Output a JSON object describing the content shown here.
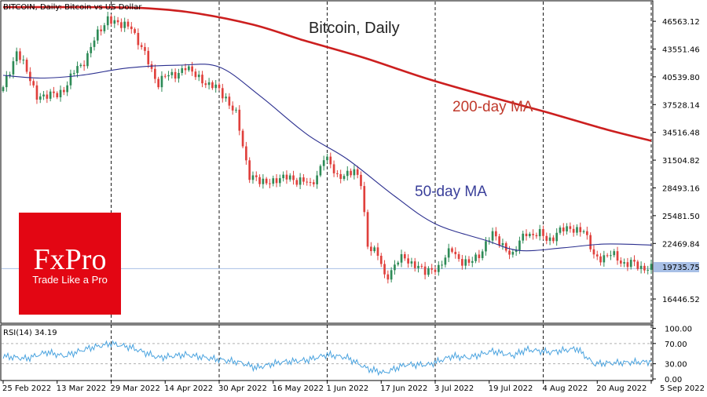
{
  "chart_data": {
    "type": "candlestick",
    "header": "BITCOIN, Daily:  Bitcoin vs US Dollar",
    "title": "Bitcoin, Daily",
    "annotations": {
      "ma200": "200-day MA",
      "ma50": "50-day MA"
    },
    "y_axis_ticks": [
      "46563.12",
      "43551.46",
      "40539.80",
      "37528.14",
      "34516.48",
      "31504.82",
      "28493.16",
      "25481.50",
      "22469.84",
      "16446.52"
    ],
    "y_range": [
      13900,
      48700
    ],
    "current_price": "19735.75",
    "x_axis_ticks": [
      "25 Feb 2022",
      "13 Mar 2022",
      "29 Mar 2022",
      "14 Apr 2022",
      "30 Apr 2022",
      "16 May 2022",
      "1 Jun 2022",
      "17 Jun 2022",
      "3 Jul 2022",
      "19 Jul 2022",
      "4 Aug 2022",
      "20 Aug 2022",
      "5 Sep 2022"
    ],
    "date_range": [
      "2022-02-25",
      "2022-09-05"
    ],
    "ma200_series": [
      [
        "2022-02-25",
        48100
      ],
      [
        "2022-03-20",
        48100
      ],
      [
        "2022-04-07",
        48000
      ],
      [
        "2022-04-22",
        47500
      ],
      [
        "2022-05-10",
        46200
      ],
      [
        "2022-05-25",
        44500
      ],
      [
        "2022-06-12",
        42600
      ],
      [
        "2022-06-30",
        40400
      ],
      [
        "2022-07-18",
        38500
      ],
      [
        "2022-08-05",
        36700
      ],
      [
        "2022-08-23",
        34800
      ],
      [
        "2022-09-05",
        33600
      ]
    ],
    "ma50_series": [
      [
        "2022-02-25",
        40700
      ],
      [
        "2022-03-08",
        40400
      ],
      [
        "2022-03-20",
        40700
      ],
      [
        "2022-04-03",
        41500
      ],
      [
        "2022-04-18",
        41800
      ],
      [
        "2022-04-30",
        41600
      ],
      [
        "2022-05-12",
        38500
      ],
      [
        "2022-05-26",
        34300
      ],
      [
        "2022-06-07",
        31600
      ],
      [
        "2022-06-21",
        27600
      ],
      [
        "2022-07-03",
        24600
      ],
      [
        "2022-07-18",
        22800
      ],
      [
        "2022-07-28",
        21700
      ],
      [
        "2022-08-10",
        22000
      ],
      [
        "2022-08-22",
        22400
      ],
      [
        "2022-09-05",
        22300
      ]
    ],
    "price_path": [
      [
        "2022-02-25",
        39000
      ],
      [
        "2022-03-01",
        43500
      ],
      [
        "2022-03-07",
        38500
      ],
      [
        "2022-03-13",
        38500
      ],
      [
        "2022-03-20",
        41800
      ],
      [
        "2022-03-28",
        47000
      ],
      [
        "2022-04-01",
        46000
      ],
      [
        "2022-04-04",
        46100
      ],
      [
        "2022-04-08",
        42700
      ],
      [
        "2022-04-12",
        40000
      ],
      [
        "2022-04-20",
        41500
      ],
      [
        "2022-04-27",
        39700
      ],
      [
        "2022-05-02",
        38500
      ],
      [
        "2022-05-05",
        36200
      ],
      [
        "2022-05-09",
        30000
      ],
      [
        "2022-05-12",
        29000
      ],
      [
        "2022-05-18",
        29500
      ],
      [
        "2022-05-24",
        29500
      ],
      [
        "2022-05-27",
        28500
      ],
      [
        "2022-05-31",
        31800
      ],
      [
        "2022-06-04",
        29800
      ],
      [
        "2022-06-09",
        30200
      ],
      [
        "2022-06-11",
        29000
      ],
      [
        "2022-06-13",
        22500
      ],
      [
        "2022-06-16",
        21000
      ],
      [
        "2022-06-18",
        19000
      ],
      [
        "2022-06-24",
        21000
      ],
      [
        "2022-06-30",
        19300
      ],
      [
        "2022-07-04",
        20000
      ],
      [
        "2022-07-08",
        21700
      ],
      [
        "2022-07-13",
        20000
      ],
      [
        "2022-07-20",
        23400
      ],
      [
        "2022-07-26",
        21200
      ],
      [
        "2022-07-30",
        23800
      ],
      [
        "2022-08-05",
        23000
      ],
      [
        "2022-08-12",
        24200
      ],
      [
        "2022-08-16",
        23800
      ],
      [
        "2022-08-19",
        21100
      ],
      [
        "2022-08-26",
        21000
      ],
      [
        "2022-08-29",
        20200
      ],
      [
        "2022-09-05",
        19800
      ]
    ],
    "rsi": {
      "label": "RSI(14) 34.19",
      "y_ticks": [
        "100.00",
        "70.00",
        "30.00",
        "0.00"
      ],
      "levels": [
        70,
        30
      ],
      "series": [
        [
          "2022-02-25",
          45
        ],
        [
          "2022-03-04",
          40
        ],
        [
          "2022-03-10",
          53
        ],
        [
          "2022-03-15",
          45
        ],
        [
          "2022-03-22",
          60
        ],
        [
          "2022-03-29",
          70
        ],
        [
          "2022-04-04",
          62
        ],
        [
          "2022-04-12",
          42
        ],
        [
          "2022-04-20",
          48
        ],
        [
          "2022-04-28",
          40
        ],
        [
          "2022-05-06",
          33
        ],
        [
          "2022-05-11",
          22
        ],
        [
          "2022-05-18",
          33
        ],
        [
          "2022-05-26",
          37
        ],
        [
          "2022-06-01",
          48
        ],
        [
          "2022-06-07",
          42
        ],
        [
          "2022-06-13",
          20
        ],
        [
          "2022-06-18",
          12
        ],
        [
          "2022-06-24",
          28
        ],
        [
          "2022-07-01",
          28
        ],
        [
          "2022-07-08",
          45
        ],
        [
          "2022-07-13",
          42
        ],
        [
          "2022-07-20",
          55
        ],
        [
          "2022-07-26",
          46
        ],
        [
          "2022-07-30",
          58
        ],
        [
          "2022-08-06",
          53
        ],
        [
          "2022-08-14",
          60
        ],
        [
          "2022-08-19",
          30
        ],
        [
          "2022-08-26",
          32
        ],
        [
          "2022-09-05",
          34
        ]
      ]
    },
    "colors": {
      "bull": "#2e8b57",
      "bear": "#e0403c",
      "ma200": "#cc1f1f",
      "ma50": "#2b2f8f",
      "rsi": "#4aa3df",
      "grid": "#000000",
      "hline": "#a8c0e6",
      "badge_bg": "#e30613",
      "badge_text": "#ffffff"
    }
  },
  "brand": {
    "name": "FxPro",
    "tagline": "Trade Like a Pro"
  }
}
